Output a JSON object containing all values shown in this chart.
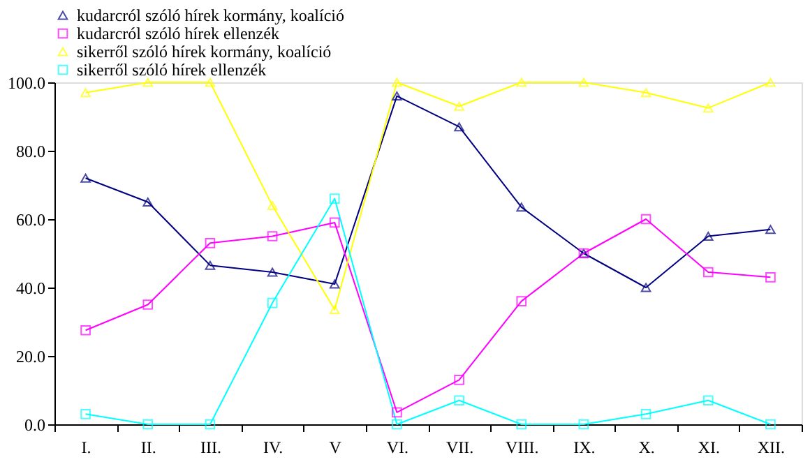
{
  "chart_data": {
    "type": "line",
    "categories": [
      "I.",
      "II.",
      "III.",
      "IV.",
      "V",
      "VI.",
      "VII.",
      "VIII.",
      "IX.",
      "X.",
      "XI.",
      "XII."
    ],
    "series": [
      {
        "name": "kudarcról szóló hírek kormány, koalíció",
        "color": "#000080",
        "marker": "triangle",
        "values": [
          72,
          65,
          46.5,
          44.5,
          41,
          96,
          87,
          63.5,
          50,
          40,
          55,
          57
        ]
      },
      {
        "name": "kudarcról szóló hírek ellenzék",
        "color": "#ff00ff",
        "marker": "square",
        "values": [
          27.5,
          35,
          53,
          55,
          59,
          3.5,
          13,
          36,
          50,
          60,
          44.5,
          43
        ]
      },
      {
        "name": "sikerről szóló hírek kormány, koalíció",
        "color": "#ffff00",
        "marker": "triangle",
        "values": [
          97,
          100,
          100,
          64,
          33.5,
          100,
          93,
          100,
          100,
          97,
          92.5,
          100
        ]
      },
      {
        "name": "sikerről szóló hírek ellenzék",
        "color": "#00ffff",
        "marker": "square",
        "values": [
          3,
          0,
          0,
          35.5,
          66,
          0,
          7,
          0,
          0,
          3,
          7,
          0
        ]
      }
    ],
    "ylim": [
      0,
      100
    ],
    "yticks": [
      {
        "value": 0,
        "label": "0.0"
      },
      {
        "value": 20,
        "label": "20.0"
      },
      {
        "value": 40,
        "label": "40.0"
      },
      {
        "value": 60,
        "label": "60.0"
      },
      {
        "value": 80,
        "label": "80.0"
      },
      {
        "value": 100,
        "label": "100.0"
      }
    ],
    "grid": false,
    "legend": "top",
    "line_style": "solid"
  }
}
